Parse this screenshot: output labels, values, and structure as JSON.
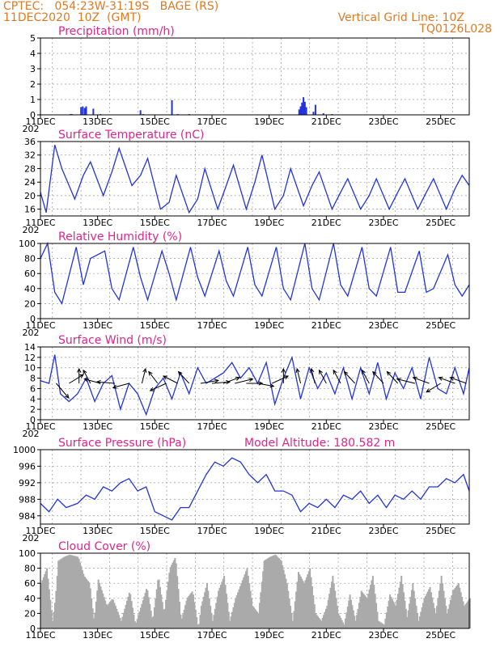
{
  "header": {
    "line1": "CPTEC:   054:23W-31:19S   BAGE (RS)",
    "line2": "11DEC2020  10Z  (GMT)",
    "right1": "Vertical Grid Line: 10Z",
    "right2": "TQ0126L028"
  },
  "colors": {
    "header": "#e07a22",
    "title": "#e0248a",
    "line": "#2233dd",
    "cloud": "#aaaaaa",
    "arrow": "#000000"
  },
  "x_ticks": [
    "11DEC",
    "13DEC",
    "15DEC",
    "17DEC",
    "19DEC",
    "21DEC",
    "23DEC",
    "25DEC"
  ],
  "x_cut_label": "202",
  "chart_data": [
    {
      "type": "bar",
      "title": "Precipitation (mm/h)",
      "ylim": [
        0,
        5
      ],
      "yticks": [
        0,
        1,
        2,
        3,
        4,
        5
      ],
      "xlim_days": [
        11,
        26
      ],
      "bars": [
        {
          "day": 12.05,
          "value": 0.05
        },
        {
          "day": 12.1,
          "value": 0.05
        },
        {
          "day": 12.42,
          "value": 0.5
        },
        {
          "day": 12.48,
          "value": 0.55
        },
        {
          "day": 12.55,
          "value": 0.45
        },
        {
          "day": 12.6,
          "value": 0.55
        },
        {
          "day": 12.85,
          "value": 0.4
        },
        {
          "day": 13.1,
          "value": 0.05
        },
        {
          "day": 14.5,
          "value": 0.3
        },
        {
          "day": 14.6,
          "value": 0.05
        },
        {
          "day": 15.6,
          "value": 0.95
        },
        {
          "day": 15.8,
          "value": 0.05
        },
        {
          "day": 16.2,
          "value": 0.05
        },
        {
          "day": 20.05,
          "value": 0.35
        },
        {
          "day": 20.1,
          "value": 0.55
        },
        {
          "day": 20.15,
          "value": 0.8
        },
        {
          "day": 20.2,
          "value": 1.15
        },
        {
          "day": 20.25,
          "value": 0.85
        },
        {
          "day": 20.3,
          "value": 0.5
        },
        {
          "day": 20.55,
          "value": 0.2
        },
        {
          "day": 20.62,
          "value": 0.65
        },
        {
          "day": 20.9,
          "value": 0.1
        },
        {
          "day": 21.2,
          "value": 0.05
        }
      ]
    },
    {
      "type": "line",
      "title": "Surface Temperature (nC)",
      "ylim": [
        14,
        36
      ],
      "yticks": [
        16,
        20,
        24,
        28,
        32,
        36
      ],
      "x_days": [
        11,
        11.2,
        11.5,
        11.75,
        12.2,
        12.5,
        12.75,
        13.2,
        13.5,
        13.75,
        14.2,
        14.5,
        14.75,
        15.2,
        15.5,
        15.75,
        16.2,
        16.5,
        16.75,
        17.2,
        17.5,
        17.75,
        18.2,
        18.5,
        18.75,
        19.2,
        19.5,
        19.75,
        20.2,
        20.5,
        20.75,
        21.2,
        21.5,
        21.75,
        22.2,
        22.5,
        22.75,
        23.2,
        23.5,
        23.75,
        24.2,
        24.5,
        24.75,
        25.2,
        25.5,
        25.75,
        26
      ],
      "values": [
        21,
        15,
        35,
        28,
        19,
        26,
        30,
        20,
        27,
        34,
        23,
        26,
        31,
        16,
        18,
        26,
        15,
        19,
        28,
        16,
        23,
        29,
        16,
        24,
        32,
        16,
        20,
        28,
        17,
        23,
        27,
        16,
        21,
        25,
        16,
        20,
        25,
        16,
        21,
        25,
        16,
        21,
        25,
        16,
        22,
        26,
        23
      ]
    },
    {
      "type": "line",
      "title": "Relative Humidity (%)",
      "ylim": [
        0,
        100
      ],
      "yticks": [
        0,
        20,
        40,
        60,
        80,
        100
      ],
      "x_days": [
        11,
        11.25,
        11.5,
        11.75,
        12.25,
        12.5,
        12.75,
        13.25,
        13.5,
        13.75,
        14.25,
        14.5,
        14.75,
        15.25,
        15.5,
        15.75,
        16.25,
        16.5,
        16.75,
        17.25,
        17.5,
        17.75,
        18.25,
        18.5,
        18.75,
        19.25,
        19.5,
        19.75,
        20.25,
        20.5,
        20.75,
        21.25,
        21.5,
        21.75,
        22.25,
        22.5,
        22.75,
        23.25,
        23.5,
        23.75,
        24.25,
        24.5,
        24.75,
        25.25,
        25.5,
        25.75,
        26
      ],
      "values": [
        80,
        100,
        35,
        20,
        95,
        45,
        80,
        90,
        40,
        25,
        95,
        55,
        25,
        90,
        60,
        25,
        95,
        55,
        30,
        90,
        50,
        30,
        95,
        45,
        30,
        95,
        40,
        25,
        100,
        40,
        25,
        100,
        45,
        30,
        95,
        40,
        30,
        95,
        35,
        35,
        90,
        35,
        40,
        85,
        45,
        30,
        45
      ]
    },
    {
      "type": "line",
      "title": "Surface Wind (m/s)",
      "ylim": [
        0,
        14
      ],
      "yticks": [
        0,
        2,
        4,
        6,
        8,
        10,
        12,
        14
      ],
      "x_days": [
        11,
        11.3,
        11.5,
        11.7,
        12.0,
        12.3,
        12.6,
        12.9,
        13.2,
        13.5,
        13.8,
        14.1,
        14.4,
        14.7,
        15.0,
        15.3,
        15.6,
        15.9,
        16.2,
        16.5,
        16.8,
        17.1,
        17.4,
        17.7,
        18.0,
        18.3,
        18.6,
        18.9,
        19.2,
        19.5,
        19.8,
        20.1,
        20.4,
        20.7,
        21.0,
        21.3,
        21.6,
        21.9,
        22.2,
        22.5,
        22.8,
        23.1,
        23.4,
        23.7,
        24.0,
        24.3,
        24.6,
        24.9,
        25.2,
        25.5,
        25.8,
        26
      ],
      "values": [
        7.5,
        7,
        12.5,
        5,
        3.5,
        5,
        8,
        3.5,
        7,
        8.5,
        2,
        7,
        5,
        1,
        6,
        8,
        4,
        9,
        5,
        10,
        7,
        8,
        9,
        11,
        8,
        10,
        7,
        11,
        3,
        8,
        12,
        4,
        10,
        6,
        9,
        5,
        10,
        4,
        10,
        5,
        11,
        4,
        9,
        6,
        10,
        4,
        12,
        6,
        5,
        10,
        5,
        10
      ],
      "arrows": [
        {
          "day": 11.55,
          "u": 0.7,
          "v": -1.0
        },
        {
          "day": 12.0,
          "u": 0.8,
          "v": 0.6
        },
        {
          "day": 12.35,
          "u": 0.0,
          "v": 1.0
        },
        {
          "day": 12.75,
          "u": -0.4,
          "v": 0.9
        },
        {
          "day": 13.1,
          "u": -0.9,
          "v": 0.3
        },
        {
          "day": 13.6,
          "u": -1.0,
          "v": 0.1
        },
        {
          "day": 14.1,
          "u": -0.9,
          "v": -0.3
        },
        {
          "day": 14.55,
          "u": 0.2,
          "v": 1.0
        },
        {
          "day": 15.1,
          "u": -0.5,
          "v": 0.8
        },
        {
          "day": 15.4,
          "u": -0.9,
          "v": -0.5
        },
        {
          "day": 15.8,
          "u": -0.8,
          "v": 0.5
        },
        {
          "day": 16.2,
          "u": -0.6,
          "v": 0.8
        },
        {
          "day": 16.6,
          "u": 1.0,
          "v": 0.2
        },
        {
          "day": 17.0,
          "u": 1.0,
          "v": 0.1
        },
        {
          "day": 17.4,
          "u": 0.9,
          "v": 0.4
        },
        {
          "day": 17.8,
          "u": 1.0,
          "v": 0.3
        },
        {
          "day": 18.2,
          "u": 0.9,
          "v": 0.0
        },
        {
          "day": 18.6,
          "u": 0.9,
          "v": -0.2
        },
        {
          "day": 19.1,
          "u": 0.9,
          "v": 0.5
        },
        {
          "day": 19.5,
          "u": 0.0,
          "v": 1.0
        },
        {
          "day": 20.1,
          "u": -0.2,
          "v": 1.0
        },
        {
          "day": 20.6,
          "u": -0.2,
          "v": 1.0
        },
        {
          "day": 21.0,
          "u": -0.4,
          "v": 0.9
        },
        {
          "day": 21.5,
          "u": -0.4,
          "v": 0.9
        },
        {
          "day": 22.0,
          "u": -0.6,
          "v": 0.8
        },
        {
          "day": 22.5,
          "u": -0.4,
          "v": 0.9
        },
        {
          "day": 23.0,
          "u": -0.6,
          "v": 0.8
        },
        {
          "day": 23.5,
          "u": -0.6,
          "v": 0.8
        },
        {
          "day": 24.1,
          "u": -1.0,
          "v": 0.3
        },
        {
          "day": 24.6,
          "u": -0.9,
          "v": 0.4
        },
        {
          "day": 25.0,
          "u": -0.8,
          "v": -0.6
        },
        {
          "day": 25.5,
          "u": -0.9,
          "v": 0.4
        },
        {
          "day": 25.9,
          "u": -0.9,
          "v": 0.4
        }
      ]
    },
    {
      "type": "line",
      "title": "Surface Pressure (hPa)",
      "annotation": "Model Altitude: 180.582  m",
      "ylim": [
        982,
        1000
      ],
      "yticks": [
        984,
        988,
        992,
        996,
        1000
      ],
      "x_days": [
        11,
        11.3,
        11.6,
        11.9,
        12.3,
        12.6,
        12.9,
        13.2,
        13.5,
        13.8,
        14.1,
        14.4,
        14.7,
        15.0,
        15.3,
        15.6,
        15.9,
        16.2,
        16.5,
        16.8,
        17.1,
        17.4,
        17.7,
        18.0,
        18.3,
        18.6,
        18.9,
        19.2,
        19.5,
        19.8,
        20.1,
        20.4,
        20.7,
        21.0,
        21.3,
        21.6,
        21.9,
        22.2,
        22.5,
        22.8,
        23.1,
        23.4,
        23.7,
        24.0,
        24.3,
        24.6,
        24.9,
        25.2,
        25.5,
        25.8,
        26
      ],
      "values": [
        987,
        985,
        988,
        986,
        987,
        989,
        988,
        991,
        990,
        992,
        993,
        990,
        991,
        985,
        984,
        983,
        986,
        986,
        990,
        994,
        997,
        996,
        998,
        997,
        994,
        992,
        994,
        990,
        990,
        989,
        985,
        987,
        986,
        988,
        986,
        989,
        988,
        990,
        987,
        989,
        986,
        989,
        988,
        990,
        988,
        991,
        991,
        993,
        992,
        994,
        990
      ]
    },
    {
      "type": "area",
      "title": "Cloud Cover (%)",
      "ylim": [
        0,
        100
      ],
      "yticks": [
        0,
        20,
        40,
        60,
        80,
        100
      ],
      "x_days": [
        11,
        11.2,
        11.4,
        11.5,
        11.6,
        11.8,
        12.0,
        12.3,
        12.5,
        12.7,
        12.85,
        13.0,
        13.3,
        13.5,
        13.8,
        14.1,
        14.3,
        14.5,
        14.7,
        14.9,
        15.1,
        15.3,
        15.5,
        15.7,
        15.9,
        16.1,
        16.3,
        16.5,
        16.6,
        16.8,
        17.0,
        17.2,
        17.4,
        17.6,
        17.8,
        18.0,
        18.2,
        18.4,
        18.6,
        18.8,
        19.0,
        19.2,
        19.4,
        19.6,
        19.8,
        20.0,
        20.2,
        20.4,
        20.6,
        20.8,
        21.0,
        21.2,
        21.4,
        21.6,
        21.8,
        22.0,
        22.2,
        22.4,
        22.6,
        22.8,
        23.0,
        23.2,
        23.4,
        23.6,
        23.8,
        24.0,
        24.2,
        24.4,
        24.6,
        24.8,
        25.0,
        25.2,
        25.4,
        25.6,
        25.8,
        26
      ],
      "values": [
        60,
        80,
        10,
        40,
        90,
        95,
        98,
        95,
        70,
        60,
        10,
        65,
        30,
        40,
        10,
        50,
        5,
        30,
        55,
        10,
        70,
        20,
        80,
        95,
        10,
        40,
        50,
        0,
        30,
        60,
        10,
        50,
        70,
        10,
        40,
        60,
        80,
        30,
        20,
        90,
        95,
        98,
        90,
        60,
        10,
        75,
        60,
        80,
        20,
        10,
        30,
        70,
        20,
        5,
        45,
        10,
        50,
        40,
        70,
        10,
        5,
        45,
        30,
        70,
        15,
        60,
        10,
        40,
        55,
        20,
        70,
        20,
        50,
        60,
        30,
        40
      ]
    }
  ]
}
